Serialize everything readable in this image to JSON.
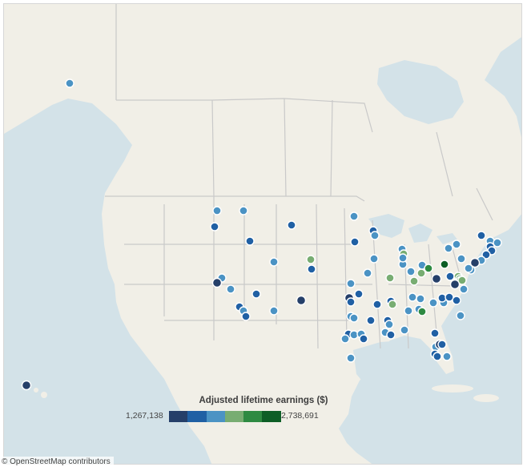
{
  "legend": {
    "title": "Adjusted lifetime earnings ($)",
    "min_label": "1,267,138",
    "max_label": "2,738,691",
    "colors": [
      "#253f69",
      "#2060a4",
      "#4b93c4",
      "#78ad72",
      "#2e8a42",
      "#0d5e26"
    ]
  },
  "attribution": "© OpenStreetMap contributors",
  "map_colors": {
    "water": "#d3e2e8",
    "land": "#f1efe7",
    "border": "#c9c9c9",
    "marker_stroke": "#ffffff"
  }
}
